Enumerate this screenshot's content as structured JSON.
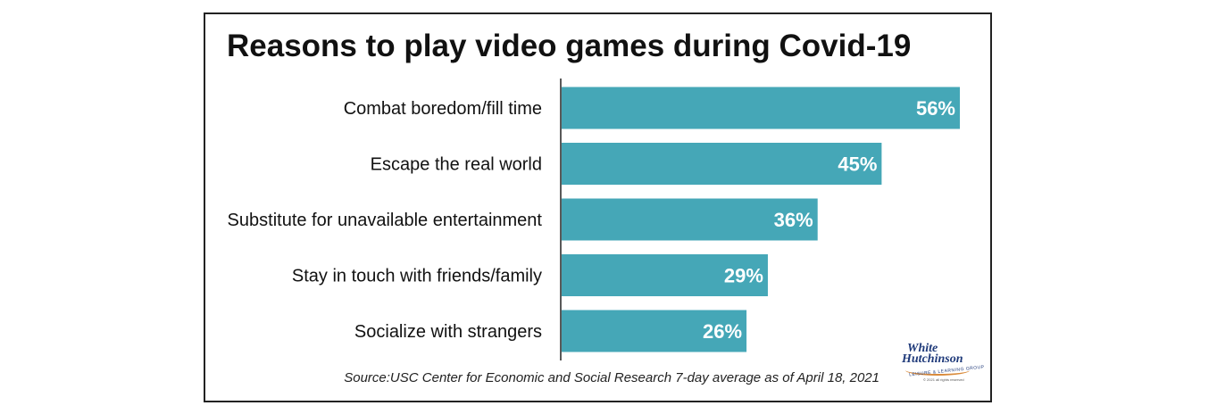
{
  "chart_data": {
    "type": "bar",
    "orientation": "horizontal",
    "title": "Reasons to play video games during Covid-19",
    "categories": [
      "Combat boredom/fill time",
      "Escape the real world",
      "Substitute for unavailable entertainment",
      "Stay in touch with friends/family",
      "Socialize with strangers"
    ],
    "values": [
      56,
      45,
      36,
      29,
      26
    ],
    "value_labels": [
      "56%",
      "45%",
      "36%",
      "29%",
      "26%"
    ],
    "unit": "%",
    "xlim": [
      0,
      60
    ],
    "grid": false,
    "bar_color": "#45a7b7",
    "label_color": "#ffffff"
  },
  "source": "Source:USC Center for Economic and Social Research 7-day average as of April 18, 2021",
  "logo": {
    "line1": "White",
    "line2": "Hutchinson",
    "tagline": "LEISURE & LEARNING GROUP",
    "copyright": "© 2021 all rights reserved"
  }
}
